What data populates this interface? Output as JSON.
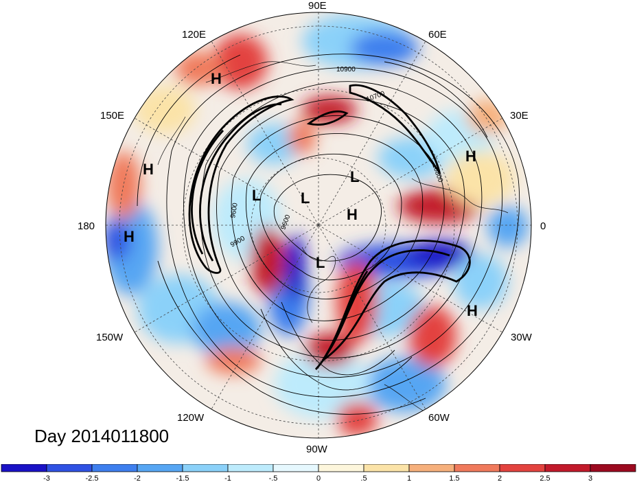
{
  "map": {
    "longitude_labels": [
      {
        "id": "lon-90e",
        "text": "90E"
      },
      {
        "id": "lon-60e",
        "text": "60E"
      },
      {
        "id": "lon-120e",
        "text": "120E"
      },
      {
        "id": "lon-150e",
        "text": "150E"
      },
      {
        "id": "lon-30e",
        "text": "30E"
      },
      {
        "id": "lon-180",
        "text": "180"
      },
      {
        "id": "lon-0",
        "text": "0"
      },
      {
        "id": "lon-150w",
        "text": "150W"
      },
      {
        "id": "lon-30w",
        "text": "30W"
      },
      {
        "id": "lon-120w",
        "text": "120W"
      },
      {
        "id": "lon-60w",
        "text": "60W"
      },
      {
        "id": "lon-90w",
        "text": "90W"
      }
    ],
    "pressure_markers": [
      "H",
      "H",
      "H",
      "H",
      "H",
      "H",
      "L",
      "L",
      "L",
      "L"
    ],
    "contour_labels": [
      "10900",
      "10700",
      "10800",
      "9600",
      "9900",
      "9600"
    ]
  },
  "day_label": "Day 2014011800",
  "colorbar": {
    "ticks": [
      "-3",
      "-2.5",
      "-2",
      "-1.5",
      "-1",
      "-.5",
      "0",
      ".5",
      "1",
      "1.5",
      "2",
      "2.5",
      "3"
    ],
    "colors": [
      "#1a12c6",
      "#2f52e3",
      "#3e7fee",
      "#57a6f3",
      "#8bd1f9",
      "#bdebfc",
      "#e6f8fe",
      "#fdf6dc",
      "#fbe3a8",
      "#f6b07c",
      "#f07a5c",
      "#e3433f",
      "#c21a2b",
      "#9c0a20"
    ]
  },
  "colors": {
    "ocean_neutral": "#f4f2ef",
    "positive": "#e3433f",
    "negative": "#3e7fee"
  }
}
